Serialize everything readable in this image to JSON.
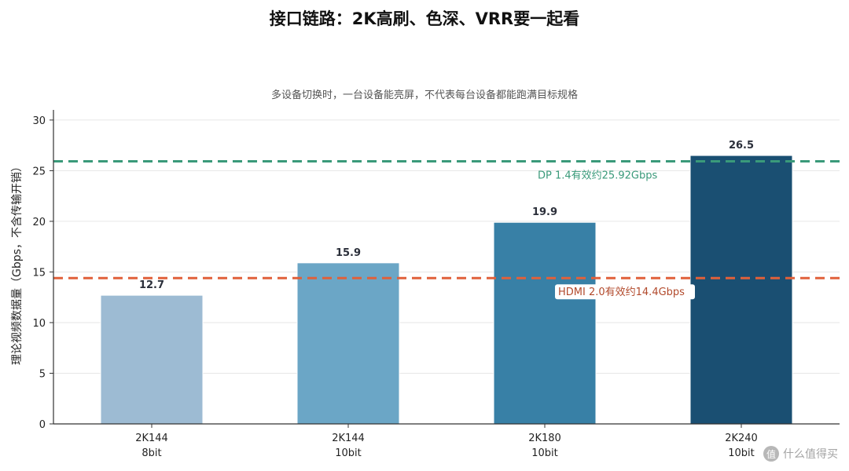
{
  "title": "接口链路：2K高刷、色深、VRR要一起看",
  "subtitle": "多设备切换时，一台设备能亮屏，不代表每台设备都能跑满目标规格",
  "watermark": {
    "icon": "值",
    "text": "什么值得买"
  },
  "chart_data": {
    "type": "bar",
    "categories": [
      {
        "line1": "2K144",
        "line2": "8bit"
      },
      {
        "line1": "2K144",
        "line2": "10bit"
      },
      {
        "line1": "2K180",
        "line2": "10bit"
      },
      {
        "line1": "2K240",
        "line2": "10bit"
      }
    ],
    "values": [
      12.7,
      15.9,
      19.9,
      26.5
    ],
    "value_labels": [
      "12.7",
      "15.9",
      "19.9",
      "26.5"
    ],
    "bar_colors": [
      "#9dbbd3",
      "#6ba6c6",
      "#3880a6",
      "#1a4f72"
    ],
    "xlabel": "",
    "ylabel": "理论视频数据量（Gbps，不含传输开销）",
    "ylim": [
      0,
      31
    ],
    "yticks": [
      0,
      5,
      10,
      15,
      20,
      25,
      30
    ],
    "grid": true,
    "reference_lines": [
      {
        "value": 25.92,
        "label": "DP 1.4有效约25.92Gbps",
        "color": "#3a9a7a"
      },
      {
        "value": 14.4,
        "label": "HDMI 2.0有效约14.4Gbps",
        "color": "#e0603a"
      }
    ]
  }
}
